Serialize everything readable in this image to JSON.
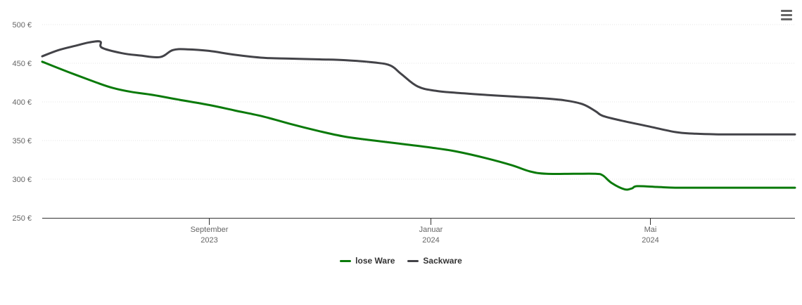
{
  "chart_data": {
    "type": "line",
    "y_unit_suffix": " €",
    "ylim": [
      250,
      500
    ],
    "yticks": [
      250,
      300,
      350,
      400,
      450,
      500
    ],
    "ytick_labels": [
      "250 €",
      "300 €",
      "350 €",
      "400 €",
      "450 €",
      "500 €"
    ],
    "xlim": [
      "2023-06-01",
      "2024-07-20"
    ],
    "xticks": [
      {
        "date": "2023-09-01",
        "label1": "September",
        "label2": "2023"
      },
      {
        "date": "2024-01-01",
        "label1": "Januar",
        "label2": "2024"
      },
      {
        "date": "2024-05-01",
        "label1": "Mai",
        "label2": "2024"
      }
    ],
    "grid": true,
    "legend_position": "bottom-center",
    "series": [
      {
        "name": "lose Ware",
        "color": "#0a7a0a",
        "points": [
          [
            "2023-06-01",
            452
          ],
          [
            "2023-06-15",
            439
          ],
          [
            "2023-07-01",
            425
          ],
          [
            "2023-07-10",
            418
          ],
          [
            "2023-07-20",
            413
          ],
          [
            "2023-08-01",
            409
          ],
          [
            "2023-08-15",
            403
          ],
          [
            "2023-09-01",
            396
          ],
          [
            "2023-09-15",
            389
          ],
          [
            "2023-10-01",
            381
          ],
          [
            "2023-10-15",
            372
          ],
          [
            "2023-11-01",
            362
          ],
          [
            "2023-11-15",
            355
          ],
          [
            "2023-12-01",
            350
          ],
          [
            "2023-12-15",
            346
          ],
          [
            "2024-01-01",
            341
          ],
          [
            "2024-01-15",
            336
          ],
          [
            "2024-02-01",
            327
          ],
          [
            "2024-02-15",
            318
          ],
          [
            "2024-02-25",
            310
          ],
          [
            "2024-03-05",
            307
          ],
          [
            "2024-03-20",
            307
          ],
          [
            "2024-04-01",
            307
          ],
          [
            "2024-04-05",
            305
          ],
          [
            "2024-04-10",
            295
          ],
          [
            "2024-04-17",
            287
          ],
          [
            "2024-04-21",
            288
          ],
          [
            "2024-04-24",
            291
          ],
          [
            "2024-05-05",
            290
          ],
          [
            "2024-05-15",
            289
          ],
          [
            "2024-06-01",
            289
          ],
          [
            "2024-07-20",
            289
          ]
        ]
      },
      {
        "name": "Sackware",
        "color": "#434348",
        "points": [
          [
            "2023-06-01",
            459
          ],
          [
            "2023-06-10",
            467
          ],
          [
            "2023-06-20",
            473
          ],
          [
            "2023-06-27",
            477
          ],
          [
            "2023-07-03",
            478
          ],
          [
            "2023-07-04",
            470
          ],
          [
            "2023-07-15",
            463
          ],
          [
            "2023-07-25",
            460
          ],
          [
            "2023-08-05",
            458
          ],
          [
            "2023-08-12",
            467
          ],
          [
            "2023-08-20",
            468
          ],
          [
            "2023-09-01",
            466
          ],
          [
            "2023-09-15",
            461
          ],
          [
            "2023-10-01",
            457
          ],
          [
            "2023-10-15",
            456
          ],
          [
            "2023-11-01",
            455
          ],
          [
            "2023-11-15",
            454
          ],
          [
            "2023-12-01",
            451
          ],
          [
            "2023-12-10",
            447
          ],
          [
            "2023-12-16",
            436
          ],
          [
            "2023-12-25",
            420
          ],
          [
            "2024-01-05",
            414
          ],
          [
            "2024-01-20",
            411
          ],
          [
            "2024-02-01",
            409
          ],
          [
            "2024-02-15",
            407
          ],
          [
            "2024-03-01",
            405
          ],
          [
            "2024-03-15",
            402
          ],
          [
            "2024-03-25",
            397
          ],
          [
            "2024-04-01",
            388
          ],
          [
            "2024-04-05",
            382
          ],
          [
            "2024-04-15",
            376
          ],
          [
            "2024-05-01",
            368
          ],
          [
            "2024-05-15",
            361
          ],
          [
            "2024-05-25",
            359
          ],
          [
            "2024-06-10",
            358
          ],
          [
            "2024-07-20",
            358
          ]
        ]
      }
    ]
  },
  "legend": {
    "items": [
      {
        "label": "lose Ware",
        "color": "#0a7a0a"
      },
      {
        "label": "Sackware",
        "color": "#434348"
      }
    ]
  },
  "menu": {
    "icon": "hamburger-menu-icon"
  }
}
